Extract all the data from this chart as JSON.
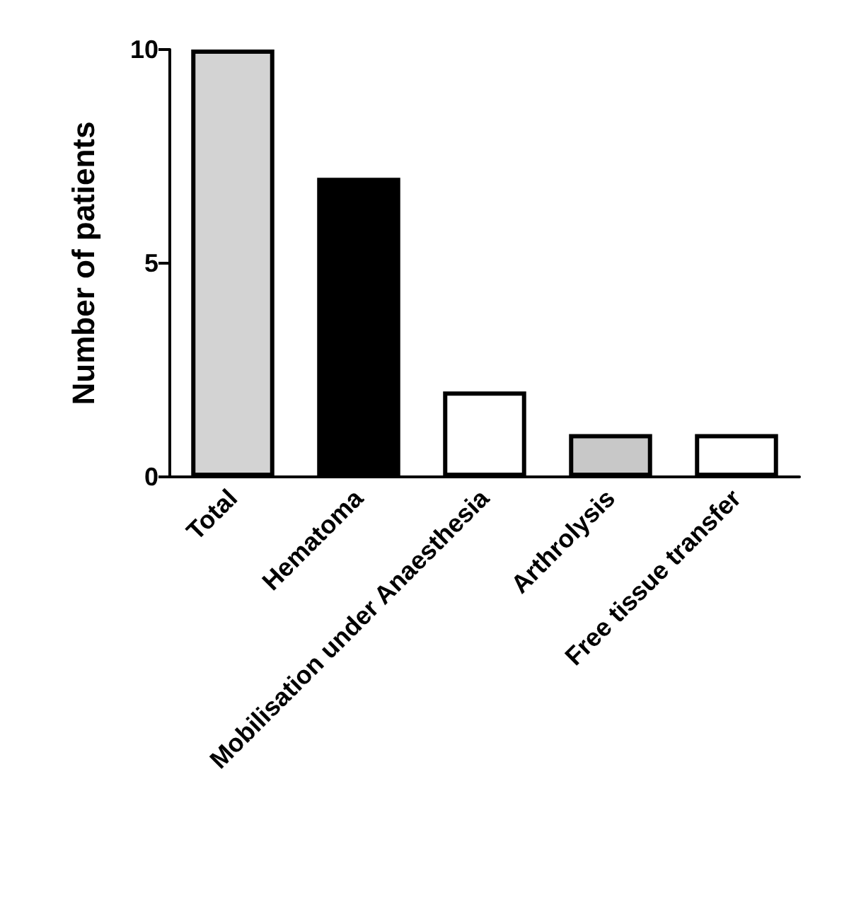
{
  "chart_data": {
    "type": "bar",
    "ylabel": "Number of patients",
    "categories": [
      "Total",
      "Hematoma",
      "Mobilisation under Anaesthesia",
      "Arthrolysis",
      "Free tissue transfer"
    ],
    "values": [
      10,
      7,
      2,
      1,
      1
    ],
    "colors": [
      "#d3d3d3",
      "#000000",
      "#ffffff",
      "#c8c8c8",
      "#ffffff"
    ],
    "ylim": [
      0,
      10
    ],
    "yticks": [
      0,
      5,
      10
    ],
    "grid": false
  }
}
